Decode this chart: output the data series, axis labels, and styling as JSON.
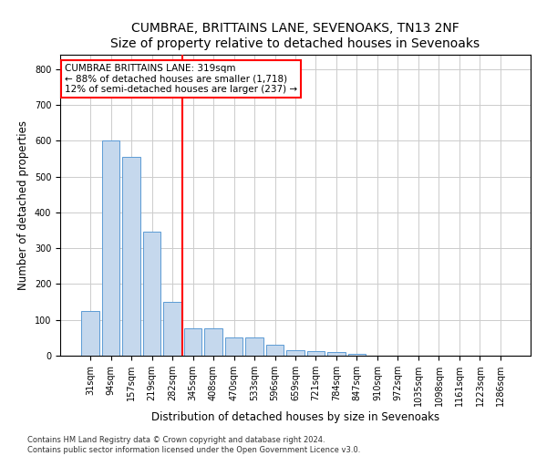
{
  "title": "CUMBRAE, BRITTAINS LANE, SEVENOAKS, TN13 2NF",
  "subtitle": "Size of property relative to detached houses in Sevenoaks",
  "xlabel": "Distribution of detached houses by size in Sevenoaks",
  "ylabel": "Number of detached properties",
  "categories": [
    "31sqm",
    "94sqm",
    "157sqm",
    "219sqm",
    "282sqm",
    "345sqm",
    "408sqm",
    "470sqm",
    "533sqm",
    "596sqm",
    "659sqm",
    "721sqm",
    "784sqm",
    "847sqm",
    "910sqm",
    "972sqm",
    "1035sqm",
    "1098sqm",
    "1161sqm",
    "1223sqm",
    "1286sqm"
  ],
  "values": [
    125,
    600,
    555,
    345,
    150,
    76,
    76,
    50,
    50,
    30,
    15,
    14,
    10,
    5,
    0,
    0,
    0,
    0,
    0,
    0,
    0
  ],
  "bar_color": "#c5d8ed",
  "bar_edge_color": "#5b9bd5",
  "vline_color": "red",
  "vline_x_index": 4.5,
  "annotation_text": "CUMBRAE BRITTAINS LANE: 319sqm\n← 88% of detached houses are smaller (1,718)\n12% of semi-detached houses are larger (237) →",
  "annotation_box_color": "white",
  "annotation_box_edge": "red",
  "ylim": [
    0,
    840
  ],
  "yticks": [
    0,
    100,
    200,
    300,
    400,
    500,
    600,
    700,
    800
  ],
  "footer": "Contains HM Land Registry data © Crown copyright and database right 2024.\nContains public sector information licensed under the Open Government Licence v3.0.",
  "bg_color": "#ffffff",
  "grid_color": "#cccccc",
  "title_fontsize": 10,
  "subtitle_fontsize": 9,
  "label_fontsize": 8.5,
  "tick_fontsize": 7,
  "annotation_fontsize": 7.5,
  "footer_fontsize": 6
}
